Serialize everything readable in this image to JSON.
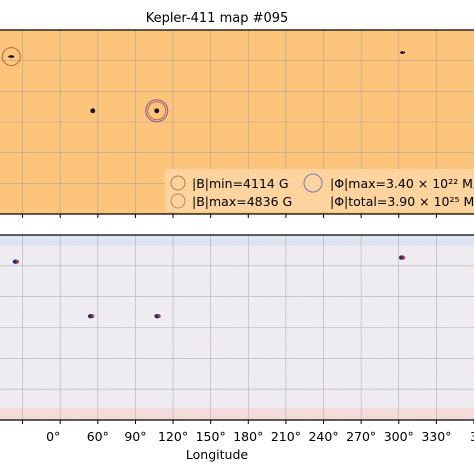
{
  "chart_data": [
    {
      "type": "scatter",
      "title": "Kepler-411  map #095",
      "xlabel": "",
      "ylabel": "",
      "xlim": [
        -18,
        360
      ],
      "grid": true,
      "background_color": "#fdc47c",
      "spots": [
        {
          "lon": -9,
          "lat": 64,
          "ring_color": "#b06a3b"
        },
        {
          "lon": 56,
          "lat": 11,
          "ring_color": null
        },
        {
          "lon": 107,
          "lat": 11,
          "ring_color": "#7a5aa8"
        },
        {
          "lon": 303,
          "lat": 68,
          "ring_color": null
        }
      ],
      "legend": {
        "placement": "lower-right",
        "entries": [
          {
            "marker_color": "#b47a4f",
            "text": "|B|min=4114 G"
          },
          {
            "marker_color": "#d87a5a",
            "text": "|B|max=4836 G"
          },
          {
            "marker_color": "#7b76b8",
            "text": "|Φ|max=3.40 × 10²² Mx"
          },
          {
            "marker_color": null,
            "text": "|Φ|total=3.90 × 10²⁵ Mx"
          }
        ]
      }
    },
    {
      "type": "heatmap",
      "title": "",
      "xlabel": "Longitude",
      "ylabel": "",
      "xlim": [
        -18,
        360
      ],
      "grid": true,
      "colormap": "blue-white-red",
      "x_ticks": [
        "60°",
        "90°",
        "120°",
        "150°",
        "180°",
        "210°",
        "240°",
        "270°",
        "300°",
        "330°"
      ],
      "x_tick_values": [
        60,
        90,
        120,
        150,
        180,
        210,
        240,
        270,
        300,
        330
      ],
      "partial_ticks": [
        {
          "value": 30,
          "label": "0°"
        },
        {
          "value": 360,
          "label": "3"
        }
      ],
      "spots": [
        {
          "lon": -5,
          "lat": 64
        },
        {
          "lon": 55,
          "lat": 11
        },
        {
          "lon": 108,
          "lat": 11
        },
        {
          "lon": 303,
          "lat": 68
        }
      ]
    }
  ]
}
